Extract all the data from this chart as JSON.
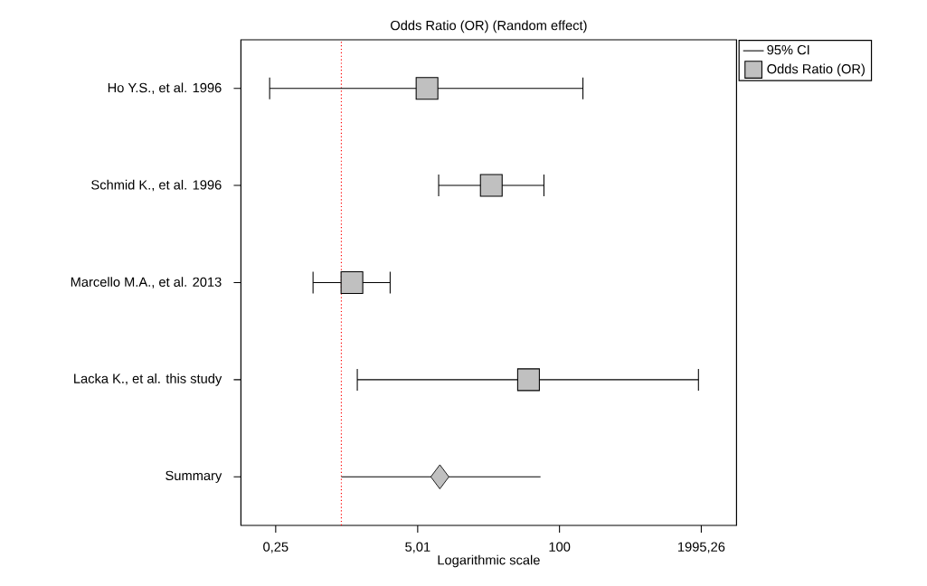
{
  "chart_data": {
    "type": "scatter",
    "orientation": "horizontal",
    "title": "Odds Ratio (OR) (Random effect)",
    "xlabel": "Logarithmic scale",
    "categories": [
      "Ho Y.S., et al. 1996",
      "Schmid K., et al. 1996",
      "Marcello M.A., et al. 2013",
      "Lacka K., et al. this study",
      "Summary"
    ],
    "log": "x",
    "xlim": [
      0.12,
      4200
    ],
    "xticks": [
      {
        "value": 0.25,
        "label": "0,25"
      },
      {
        "value": 5.01,
        "label": "5,01"
      },
      {
        "value": 100,
        "label": "100"
      },
      {
        "value": 1995.26,
        "label": "1995,26"
      }
    ],
    "series": [
      {
        "name": "Odds Ratio (OR)",
        "color": "#c0c0c0",
        "marker": "square",
        "values": [
          6.1,
          23.7,
          1.25,
          52,
          null
        ],
        "errors": [
          [
            0.22,
            164
          ],
          [
            7.8,
            72
          ],
          [
            0.55,
            2.8
          ],
          [
            1.4,
            1880
          ],
          null
        ]
      },
      {
        "color": "#c0c0c0",
        "marker": "diamond",
        "values": [
          null,
          null,
          null,
          null,
          8.0
        ],
        "errors": [
          null,
          null,
          null,
          null,
          [
            1.0,
            67
          ]
        ]
      }
    ],
    "ref_lines": [
      {
        "axis": "x",
        "value": 1,
        "color": "#ff0000",
        "line_style": "dotted"
      }
    ],
    "annotations": [
      "95% CI"
    ],
    "legend": "top right"
  }
}
